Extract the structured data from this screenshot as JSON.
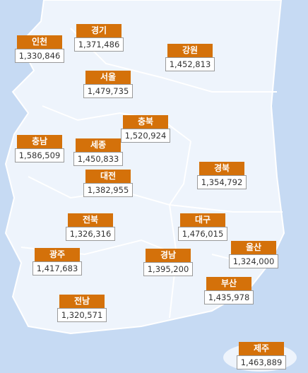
{
  "regions": [
    {
      "name": "인천",
      "value": "1,330,846"
    },
    {
      "name": "경기",
      "value": "1,371,486"
    },
    {
      "name": "강원",
      "value": "1,452,813"
    },
    {
      "name": "서울",
      "value": "1,479,735"
    },
    {
      "name": "충북",
      "value": "1,520,924"
    },
    {
      "name": "충남",
      "value": "1,586,509"
    },
    {
      "name": "세종",
      "value": "1,450,833"
    },
    {
      "name": "경북",
      "value": "1,354,792"
    },
    {
      "name": "대전",
      "value": "1,382,955"
    },
    {
      "name": "전북",
      "value": "1,326,316"
    },
    {
      "name": "대구",
      "value": "1,476,015"
    },
    {
      "name": "울산",
      "value": "1,324,000"
    },
    {
      "name": "광주",
      "value": "1,417,683"
    },
    {
      "name": "경남",
      "value": "1,395,200"
    },
    {
      "name": "부산",
      "value": "1,435,978"
    },
    {
      "name": "전남",
      "value": "1,320,571"
    },
    {
      "name": "제주",
      "value": "1,463,889"
    }
  ]
}
